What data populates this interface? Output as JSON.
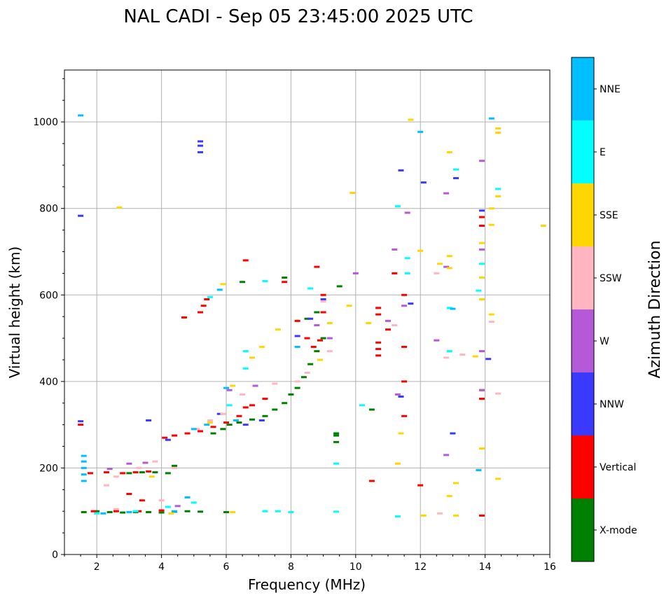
{
  "chart_data": {
    "type": "scatter",
    "title": "NAL CADI - Sep 05 23:45:00 2025 UTC",
    "xlabel": "Frequency (MHz)",
    "ylabel": "Virtual height (km)",
    "xlim": [
      1.0,
      16.0
    ],
    "ylim": [
      0,
      1120
    ],
    "xticks": [
      2,
      4,
      6,
      8,
      10,
      12,
      14,
      16
    ],
    "yticks": [
      0,
      200,
      400,
      600,
      800,
      1000
    ],
    "grid": true,
    "colorbar": {
      "label": "Azimuth Direction",
      "categories": [
        {
          "name": "X-mode",
          "color": "#008000"
        },
        {
          "name": "Vertical",
          "color": "#ff0000"
        },
        {
          "name": "NNW",
          "color": "#3a3aff"
        },
        {
          "name": "W",
          "color": "#b45ad8"
        },
        {
          "name": "SSW",
          "color": "#ffb6c1"
        },
        {
          "name": "SSE",
          "color": "#ffd700"
        },
        {
          "name": "E",
          "color": "#00ffff"
        },
        {
          "name": "NNE",
          "color": "#00bfff"
        }
      ]
    },
    "traces": [
      {
        "category": "X-mode",
        "points": [
          [
            1.6,
            98
          ],
          [
            2.0,
            100
          ],
          [
            2.4,
            98
          ],
          [
            2.8,
            97
          ],
          [
            3.2,
            98
          ],
          [
            3.6,
            98
          ],
          [
            4.0,
            97
          ],
          [
            4.4,
            99
          ],
          [
            4.8,
            100
          ],
          [
            5.2,
            99
          ],
          [
            6.0,
            98
          ],
          [
            3.0,
            188
          ],
          [
            3.4,
            190
          ],
          [
            3.8,
            190
          ],
          [
            4.2,
            188
          ],
          [
            4.4,
            205
          ],
          [
            5.6,
            280
          ],
          [
            5.9,
            290
          ],
          [
            6.1,
            300
          ],
          [
            6.4,
            305
          ],
          [
            6.8,
            312
          ],
          [
            7.2,
            320
          ],
          [
            7.5,
            335
          ],
          [
            7.8,
            350
          ],
          [
            8.0,
            370
          ],
          [
            8.2,
            385
          ],
          [
            8.4,
            410
          ],
          [
            8.6,
            440
          ],
          [
            8.8,
            470
          ],
          [
            9.0,
            500
          ],
          [
            8.5,
            545
          ],
          [
            8.8,
            560
          ],
          [
            9.4,
            280
          ],
          [
            9.4,
            260
          ],
          [
            9.4,
            275
          ],
          [
            10.5,
            335
          ],
          [
            6.5,
            630
          ],
          [
            7.8,
            640
          ],
          [
            9.5,
            620
          ]
        ]
      },
      {
        "category": "Vertical",
        "points": [
          [
            1.5,
            300
          ],
          [
            1.8,
            188
          ],
          [
            2.3,
            190
          ],
          [
            2.8,
            188
          ],
          [
            3.2,
            190
          ],
          [
            3.6,
            192
          ],
          [
            1.9,
            100
          ],
          [
            2.6,
            100
          ],
          [
            3.3,
            100
          ],
          [
            4.0,
            102
          ],
          [
            3.4,
            125
          ],
          [
            3.0,
            140
          ],
          [
            4.1,
            270
          ],
          [
            4.4,
            275
          ],
          [
            4.8,
            280
          ],
          [
            5.2,
            285
          ],
          [
            5.6,
            295
          ],
          [
            6.0,
            305
          ],
          [
            6.4,
            320
          ],
          [
            6.6,
            340
          ],
          [
            6.8,
            345
          ],
          [
            7.2,
            360
          ],
          [
            5.2,
            560
          ],
          [
            5.3,
            575
          ],
          [
            5.4,
            590
          ],
          [
            4.7,
            548
          ],
          [
            6.6,
            680
          ],
          [
            7.8,
            630
          ],
          [
            8.2,
            540
          ],
          [
            8.5,
            500
          ],
          [
            8.7,
            480
          ],
          [
            8.9,
            495
          ],
          [
            9.0,
            560
          ],
          [
            9.0,
            600
          ],
          [
            8.8,
            665
          ],
          [
            10.7,
            460
          ],
          [
            10.7,
            475
          ],
          [
            10.7,
            490
          ],
          [
            10.7,
            555
          ],
          [
            10.7,
            570
          ],
          [
            11.0,
            520
          ],
          [
            11.2,
            650
          ],
          [
            11.5,
            600
          ],
          [
            11.5,
            480
          ],
          [
            11.5,
            400
          ],
          [
            11.5,
            320
          ],
          [
            13.9,
            360
          ],
          [
            13.9,
            380
          ],
          [
            13.9,
            760
          ],
          [
            13.9,
            780
          ],
          [
            13.9,
            90
          ],
          [
            10.5,
            170
          ],
          [
            12.0,
            160
          ]
        ]
      },
      {
        "category": "NNW",
        "points": [
          [
            1.5,
            308
          ],
          [
            1.5,
            783
          ],
          [
            5.2,
            930
          ],
          [
            5.2,
            945
          ],
          [
            5.2,
            955
          ],
          [
            3.6,
            310
          ],
          [
            4.2,
            265
          ],
          [
            5.8,
            325
          ],
          [
            6.6,
            300
          ],
          [
            7.1,
            310
          ],
          [
            8.2,
            505
          ],
          [
            8.6,
            545
          ],
          [
            9.0,
            590
          ],
          [
            11.4,
            888
          ],
          [
            12.1,
            860
          ],
          [
            13.1,
            870
          ],
          [
            13.9,
            795
          ],
          [
            14.1,
            452
          ],
          [
            11.7,
            580
          ],
          [
            11.4,
            365
          ],
          [
            13.0,
            280
          ]
        ]
      },
      {
        "category": "W",
        "points": [
          [
            2.4,
            198
          ],
          [
            3.0,
            210
          ],
          [
            3.5,
            212
          ],
          [
            4.5,
            112
          ],
          [
            6.1,
            380
          ],
          [
            6.9,
            390
          ],
          [
            8.8,
            530
          ],
          [
            9.2,
            500
          ],
          [
            10.0,
            650
          ],
          [
            11.0,
            540
          ],
          [
            11.3,
            370
          ],
          [
            11.5,
            575
          ],
          [
            11.6,
            790
          ],
          [
            11.2,
            705
          ],
          [
            12.8,
            835
          ],
          [
            12.8,
            665
          ],
          [
            12.5,
            495
          ],
          [
            12.8,
            230
          ],
          [
            13.9,
            910
          ],
          [
            13.9,
            705
          ],
          [
            13.9,
            470
          ],
          [
            13.9,
            380
          ]
        ]
      },
      {
        "category": "SSW",
        "points": [
          [
            2.3,
            160
          ],
          [
            2.6,
            180
          ],
          [
            3.3,
            200
          ],
          [
            3.8,
            215
          ],
          [
            4.4,
            200
          ],
          [
            2.6,
            105
          ],
          [
            4.0,
            125
          ],
          [
            5.1,
            290
          ],
          [
            5.5,
            310
          ],
          [
            5.9,
            325
          ],
          [
            6.5,
            370
          ],
          [
            7.5,
            395
          ],
          [
            8.2,
            400
          ],
          [
            8.5,
            420
          ],
          [
            9.0,
            585
          ],
          [
            9.2,
            470
          ],
          [
            11.2,
            530
          ],
          [
            12.8,
            455
          ],
          [
            13.3,
            462
          ],
          [
            12.6,
            95
          ],
          [
            14.2,
            538
          ],
          [
            14.4,
            372
          ],
          [
            12.5,
            650
          ]
        ]
      },
      {
        "category": "SSE",
        "points": [
          [
            2.7,
            802
          ],
          [
            3.7,
            180
          ],
          [
            4.3,
            95
          ],
          [
            5.5,
            305
          ],
          [
            5.9,
            625
          ],
          [
            6.2,
            390
          ],
          [
            6.8,
            455
          ],
          [
            7.1,
            480
          ],
          [
            7.6,
            520
          ],
          [
            8.9,
            450
          ],
          [
            9.2,
            535
          ],
          [
            9.8,
            575
          ],
          [
            9.9,
            836
          ],
          [
            10.4,
            535
          ],
          [
            11.3,
            210
          ],
          [
            11.4,
            280
          ],
          [
            12.0,
            702
          ],
          [
            12.1,
            90
          ],
          [
            12.6,
            672
          ],
          [
            12.9,
            930
          ],
          [
            12.9,
            690
          ],
          [
            12.9,
            662
          ],
          [
            12.9,
            135
          ],
          [
            13.1,
            165
          ],
          [
            13.1,
            90
          ],
          [
            13.7,
            458
          ],
          [
            13.9,
            720
          ],
          [
            13.9,
            590
          ],
          [
            13.9,
            245
          ],
          [
            14.2,
            800
          ],
          [
            14.2,
            762
          ],
          [
            14.2,
            555
          ],
          [
            14.4,
            985
          ],
          [
            14.4,
            975
          ],
          [
            14.4,
            828
          ],
          [
            14.4,
            175
          ],
          [
            15.8,
            760
          ],
          [
            11.7,
            1005
          ],
          [
            6.2,
            98
          ],
          [
            13.9,
            640
          ]
        ]
      },
      {
        "category": "E",
        "points": [
          [
            2.0,
            95
          ],
          [
            3.2,
            100
          ],
          [
            4.2,
            110
          ],
          [
            5.0,
            120
          ],
          [
            7.2,
            100
          ],
          [
            7.6,
            100
          ],
          [
            8.0,
            98
          ],
          [
            9.4,
            99
          ],
          [
            6.1,
            345
          ],
          [
            6.6,
            470
          ],
          [
            6.6,
            430
          ],
          [
            7.2,
            632
          ],
          [
            8.6,
            615
          ],
          [
            9.4,
            210
          ],
          [
            10.2,
            345
          ],
          [
            11.3,
            805
          ],
          [
            11.3,
            88
          ],
          [
            11.6,
            685
          ],
          [
            11.6,
            650
          ],
          [
            12.9,
            470
          ],
          [
            13.1,
            890
          ],
          [
            13.8,
            610
          ],
          [
            13.9,
            672
          ],
          [
            14.4,
            845
          ],
          [
            12.9,
            570
          ],
          [
            5.5,
            595
          ]
        ]
      },
      {
        "category": "NNE",
        "points": [
          [
            1.5,
            1015
          ],
          [
            1.6,
            170
          ],
          [
            1.6,
            185
          ],
          [
            1.6,
            200
          ],
          [
            1.6,
            215
          ],
          [
            1.6,
            228
          ],
          [
            2.2,
            95
          ],
          [
            3.0,
            98
          ],
          [
            4.4,
            100
          ],
          [
            4.8,
            132
          ],
          [
            5.0,
            290
          ],
          [
            5.4,
            300
          ],
          [
            6.0,
            385
          ],
          [
            6.3,
            310
          ],
          [
            8.2,
            480
          ],
          [
            12.0,
            977
          ],
          [
            13.0,
            568
          ],
          [
            14.2,
            1008
          ],
          [
            13.8,
            195
          ],
          [
            5.8,
            612
          ]
        ]
      }
    ]
  }
}
